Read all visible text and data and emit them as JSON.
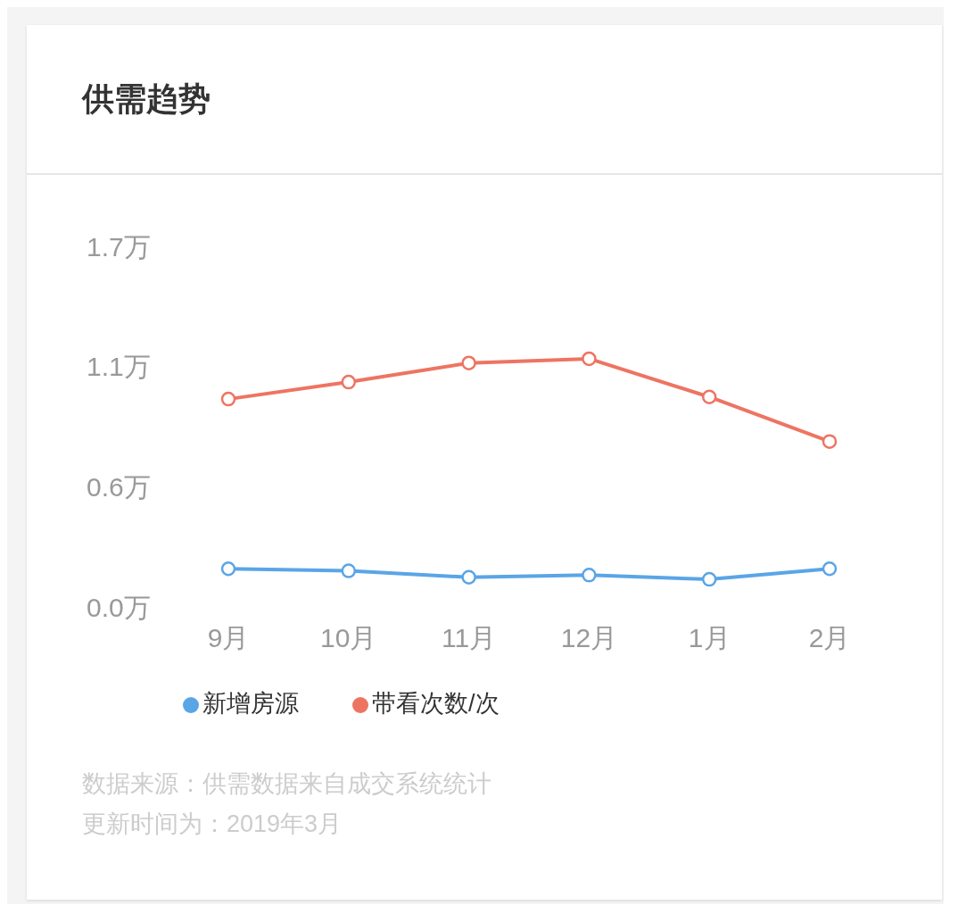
{
  "chart_data": {
    "type": "line",
    "title": "供需趋势",
    "categories": [
      "9月",
      "10月",
      "11月",
      "12月",
      "1月",
      "2月"
    ],
    "series": [
      {
        "name": "新增房源",
        "color": "#5aa5e6",
        "values": [
          0.18,
          0.17,
          0.14,
          0.15,
          0.13,
          0.18
        ]
      },
      {
        "name": "带看次数/次",
        "color": "#ee7462",
        "values": [
          0.98,
          1.06,
          1.15,
          1.17,
          0.99,
          0.78
        ]
      }
    ],
    "ylim": [
      0,
      1.7
    ],
    "yticks": [
      {
        "value": 0,
        "label": "0.0万"
      },
      {
        "value": 0.5667,
        "label": "0.6万"
      },
      {
        "value": 1.1333,
        "label": "1.1万"
      },
      {
        "value": 1.7,
        "label": "1.7万"
      }
    ],
    "grid": false,
    "legend": "bottom",
    "marker": "circle",
    "line_style": "solid",
    "annotations": [
      "数据来源：供需数据来自成交系统统计",
      "更新时间为：2019年3月"
    ]
  }
}
